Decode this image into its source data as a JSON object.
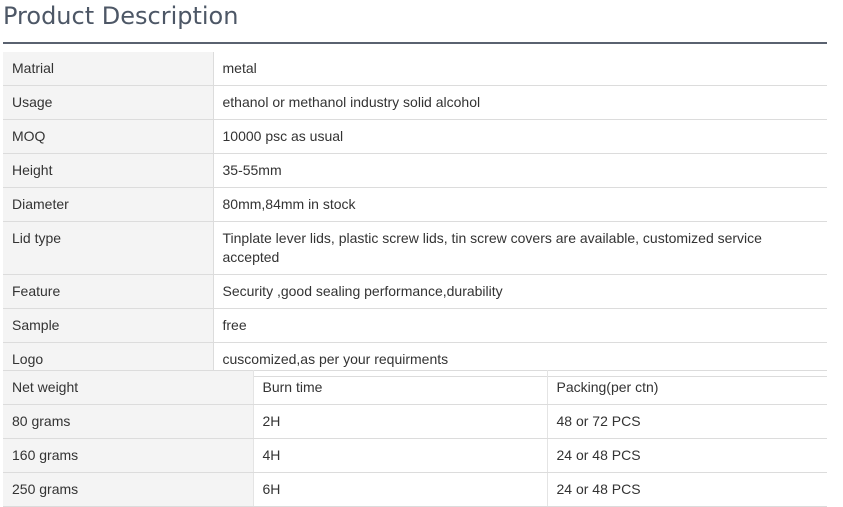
{
  "title": "Product Description",
  "specs": [
    {
      "key": "Matrial",
      "value": "metal"
    },
    {
      "key": "Usage",
      "value": "ethanol or methanol industry solid alcohol"
    },
    {
      "key": "MOQ",
      "value": "10000 psc as usual"
    },
    {
      "key": "Height",
      "value": "35-55mm"
    },
    {
      "key": "Diameter",
      "value": "80mm,84mm in stock"
    },
    {
      "key": "Lid type",
      "value": "Tinplate lever lids, plastic screw lids, tin screw covers are available, customized service accepted"
    },
    {
      "key": "Feature",
      "value": "Security ,good sealing performance,durability"
    },
    {
      "key": "Sample",
      "value": "free"
    },
    {
      "key": "Logo",
      "value": "cuscomized,as per your requirments"
    }
  ],
  "weights": {
    "headers": [
      "Net weight",
      "Burn time",
      "Packing(per ctn)"
    ],
    "rows": [
      [
        "80 grams",
        "2H",
        "48 or 72 PCS"
      ],
      [
        "160 grams",
        "4H",
        "24 or 48 PCS"
      ],
      [
        "250 grams",
        "6H",
        "24 or 48 PCS"
      ]
    ]
  }
}
